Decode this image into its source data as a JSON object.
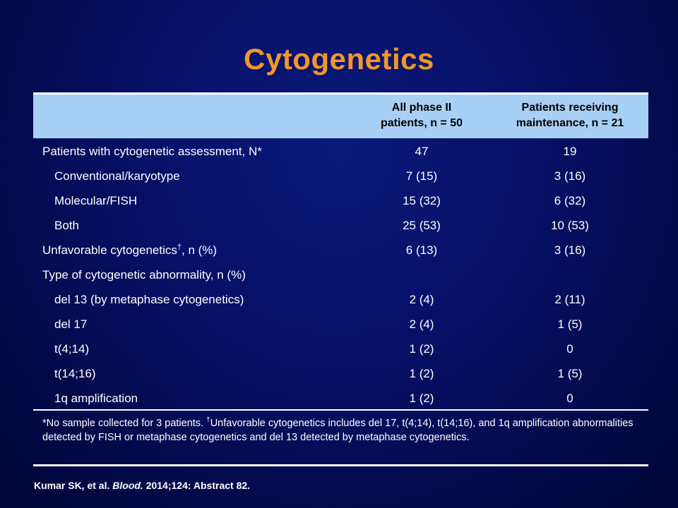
{
  "title": "Cytogenetics",
  "colors": {
    "title": "#f0962a",
    "background": "#06116a",
    "header_band": "#a8d0f5",
    "text": "#ffffff"
  },
  "table": {
    "headers": {
      "col1_line1": "All phase II",
      "col1_line2": "patients, n = 50",
      "col2_line1": "Patients receiving",
      "col2_line2": "maintenance, n = 21"
    },
    "rows": [
      {
        "label": "Patients with cytogenetic assessment, N*",
        "v1": "47",
        "v2": "19"
      },
      {
        "label": "Conventional/karyotype",
        "v1": "7 (15)",
        "v2": "3 (16)"
      },
      {
        "label": "Molecular/FISH",
        "v1": "15 (32)",
        "v2": "6 (32)"
      },
      {
        "label": "Both",
        "v1": "25 (53)",
        "v2": "10 (53)"
      },
      {
        "label_main": "Unfavorable cytogenetics",
        "label_mark": "†",
        "label_tail": ", n (%)",
        "v1": "6 (13)",
        "v2": "3 (16)"
      },
      {
        "label": "Type of cytogenetic abnormality, n (%)",
        "v1": "",
        "v2": ""
      },
      {
        "label": "del 13 (by metaphase cytogenetics)",
        "v1": "2 (4)",
        "v2": "2 (11)"
      },
      {
        "label": "del 17",
        "v1": "2 (4)",
        "v2": "1 (5)"
      },
      {
        "label": "t(4;14)",
        "v1": "1 (2)",
        "v2": "0"
      },
      {
        "label": "t(14;16)",
        "v1": "1 (2)",
        "v2": "1 (5)"
      },
      {
        "label": "1q amplification",
        "v1": "1 (2)",
        "v2": "0"
      }
    ]
  },
  "footnote": {
    "part1": "*No sample collected for 3 patients. ",
    "mark": "†",
    "part2": "Unfavorable cytogenetics includes del 17, t(4;14), t(14;16), and 1q amplification abnormalities detected by FISH or metaphase cytogenetics and del 13 detected by metaphase cytogenetics."
  },
  "citation": {
    "authors": "Kumar SK, et al. ",
    "journal": "Blood.",
    "details": " 2014;124: Abstract 82."
  }
}
